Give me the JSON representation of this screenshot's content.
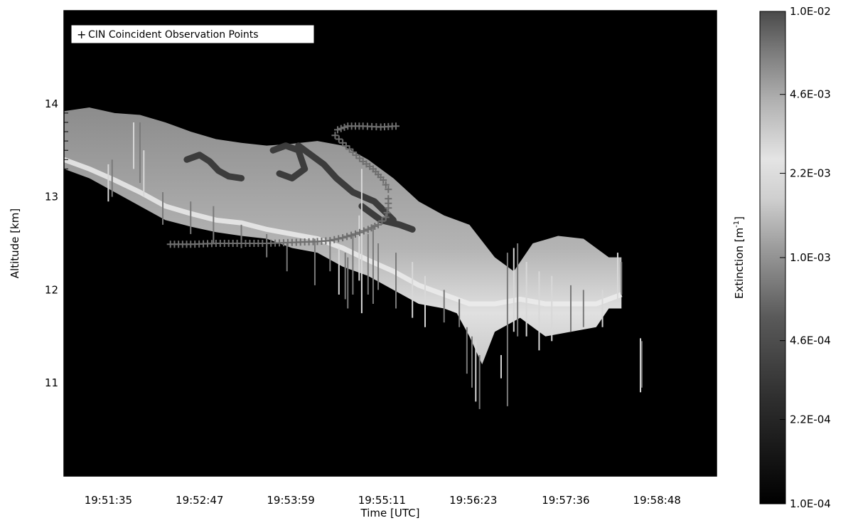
{
  "chart_data": {
    "type": "heatmap",
    "xlabel": "Time [UTC]",
    "ylabel": "Altitude [km]",
    "x_ticks": [
      "19:51:35",
      "19:52:47",
      "19:53:59",
      "19:55:11",
      "19:56:23",
      "19:57:36",
      "19:58:48"
    ],
    "x_range_seconds_from_start": [
      0,
      515
    ],
    "x_tick_positions_seconds": [
      35,
      107,
      179,
      251,
      323,
      396,
      468
    ],
    "y_ticks": [
      11,
      12,
      13,
      14
    ],
    "ylim": [
      10,
      15
    ],
    "legend": {
      "symbol": "+",
      "label": "CIN Coincident Observation Points",
      "placement": "top-left"
    },
    "colorbar": {
      "label": "Extinction",
      "unit_prefix": "[m",
      "unit_exponent": "-1",
      "unit_suffix": "]",
      "scale": "log",
      "range": [
        0.0001,
        0.01
      ],
      "tick_labels": [
        "1.0E-02",
        "4.6E-03",
        "2.2E-03",
        "1.0E-03",
        "4.6E-04",
        "2.2E-04",
        "1.0E-04"
      ],
      "colors": [
        "#000000",
        "#505050",
        "#a0a0a0",
        "#dcdcdc",
        "#e6e6e6",
        "#b4b4b4",
        "#6e6e6e",
        "#505050"
      ]
    },
    "cloud_top_km": [
      [
        0,
        13.92
      ],
      [
        20,
        13.96
      ],
      [
        40,
        13.9
      ],
      [
        60,
        13.88
      ],
      [
        80,
        13.8
      ],
      [
        100,
        13.7
      ],
      [
        120,
        13.62
      ],
      [
        140,
        13.58
      ],
      [
        160,
        13.55
      ],
      [
        180,
        13.57
      ],
      [
        200,
        13.6
      ],
      [
        220,
        13.55
      ],
      [
        240,
        13.4
      ],
      [
        260,
        13.2
      ],
      [
        280,
        12.95
      ],
      [
        300,
        12.8
      ],
      [
        320,
        12.7
      ],
      [
        340,
        12.35
      ],
      [
        355,
        12.2
      ],
      [
        370,
        12.5
      ],
      [
        390,
        12.58
      ],
      [
        410,
        12.55
      ],
      [
        430,
        12.35
      ],
      [
        440,
        12.35
      ]
    ],
    "cloud_base_km": [
      [
        0,
        13.3
      ],
      [
        20,
        13.2
      ],
      [
        40,
        13.05
      ],
      [
        60,
        12.9
      ],
      [
        80,
        12.75
      ],
      [
        100,
        12.68
      ],
      [
        120,
        12.62
      ],
      [
        140,
        12.58
      ],
      [
        160,
        12.55
      ],
      [
        180,
        12.45
      ],
      [
        200,
        12.4
      ],
      [
        220,
        12.25
      ],
      [
        240,
        12.15
      ],
      [
        260,
        12.0
      ],
      [
        280,
        11.85
      ],
      [
        300,
        11.8
      ],
      [
        310,
        11.75
      ],
      [
        320,
        11.5
      ],
      [
        330,
        11.2
      ],
      [
        340,
        11.55
      ],
      [
        360,
        11.7
      ],
      [
        380,
        11.5
      ],
      [
        400,
        11.55
      ],
      [
        420,
        11.6
      ],
      [
        430,
        11.8
      ],
      [
        440,
        11.8
      ]
    ],
    "core_km": [
      [
        0,
        13.4
      ],
      [
        20,
        13.3
      ],
      [
        40,
        13.18
      ],
      [
        60,
        13.05
      ],
      [
        80,
        12.9
      ],
      [
        100,
        12.82
      ],
      [
        120,
        12.75
      ],
      [
        140,
        12.72
      ],
      [
        160,
        12.65
      ],
      [
        180,
        12.6
      ],
      [
        200,
        12.55
      ],
      [
        220,
        12.45
      ],
      [
        240,
        12.32
      ],
      [
        260,
        12.2
      ],
      [
        280,
        12.05
      ],
      [
        300,
        11.95
      ],
      [
        320,
        11.85
      ],
      [
        340,
        11.85
      ],
      [
        360,
        11.9
      ],
      [
        380,
        11.85
      ],
      [
        400,
        11.85
      ],
      [
        420,
        11.85
      ],
      [
        440,
        11.95
      ]
    ],
    "dark_structures_km": [
      [
        [
          97,
          13.4
        ],
        [
          107,
          13.45
        ],
        [
          115,
          13.38
        ],
        [
          122,
          13.28
        ],
        [
          130,
          13.22
        ],
        [
          140,
          13.2
        ]
      ],
      [
        [
          165,
          13.5
        ],
        [
          175,
          13.55
        ],
        [
          185,
          13.5
        ],
        [
          190,
          13.3
        ],
        [
          180,
          13.2
        ],
        [
          170,
          13.25
        ]
      ],
      [
        [
          185,
          13.55
        ],
        [
          195,
          13.45
        ],
        [
          205,
          13.35
        ],
        [
          215,
          13.2
        ],
        [
          228,
          13.05
        ],
        [
          245,
          12.95
        ],
        [
          260,
          12.75
        ]
      ],
      [
        [
          235,
          12.9
        ],
        [
          250,
          12.75
        ],
        [
          265,
          12.7
        ],
        [
          275,
          12.65
        ]
      ]
    ],
    "spikes_km": [
      [
        [
          35,
          13.35,
          12.95
        ],
        [
          38,
          13.4,
          13.0
        ],
        [
          55,
          13.3,
          13.8
        ],
        [
          60,
          13.8,
          13.15
        ],
        [
          63,
          13.5,
          13.0
        ],
        [
          78,
          13.05,
          12.7
        ],
        [
          100,
          12.95,
          12.6
        ],
        [
          118,
          12.9,
          12.5
        ],
        [
          140,
          12.7,
          12.45
        ],
        [
          160,
          12.6,
          12.35
        ],
        [
          176,
          12.5,
          12.2
        ],
        [
          198,
          12.55,
          12.05
        ],
        [
          210,
          12.55,
          12.2
        ],
        [
          217,
          12.45,
          11.95
        ],
        [
          222,
          12.4,
          11.9
        ],
        [
          224,
          12.35,
          11.8
        ],
        [
          228,
          12.6,
          11.95
        ],
        [
          233,
          12.8,
          12.1
        ],
        [
          235,
          13.3,
          11.75
        ],
        [
          240,
          12.6,
          11.95
        ],
        [
          244,
          12.7,
          11.85
        ],
        [
          248,
          12.5,
          12.0
        ],
        [
          262,
          12.4,
          11.8
        ],
        [
          275,
          12.3,
          11.7
        ],
        [
          285,
          12.15,
          11.6
        ],
        [
          300,
          12.0,
          11.65
        ],
        [
          312,
          11.9,
          11.6
        ],
        [
          318,
          11.6,
          11.1
        ],
        [
          322,
          11.5,
          10.95
        ],
        [
          325,
          11.45,
          10.8
        ],
        [
          328,
          11.3,
          10.72
        ],
        [
          345,
          11.3,
          11.05
        ],
        [
          350,
          12.4,
          10.75
        ],
        [
          355,
          12.45,
          11.55
        ],
        [
          358,
          12.5,
          11.5
        ],
        [
          365,
          12.3,
          11.5
        ],
        [
          375,
          12.2,
          11.35
        ],
        [
          385,
          12.15,
          11.45
        ],
        [
          400,
          12.05,
          11.55
        ],
        [
          410,
          12.0,
          11.6
        ],
        [
          425,
          12.0,
          11.6
        ],
        [
          437,
          12.4,
          11.9
        ],
        [
          440,
          12.3,
          11.95
        ],
        [
          455,
          11.48,
          10.9
        ],
        [
          456,
          11.45,
          10.95
        ]
      ]
    ],
    "cin_track": {
      "lower": [
        [
          84,
          12.49
        ],
        [
          100,
          12.49
        ],
        [
          120,
          12.5
        ],
        [
          140,
          12.5
        ],
        [
          160,
          12.5
        ],
        [
          180,
          12.51
        ],
        [
          200,
          12.52
        ],
        [
          210,
          12.53
        ],
        [
          220,
          12.56
        ],
        [
          230,
          12.6
        ],
        [
          240,
          12.65
        ],
        [
          248,
          12.7
        ],
        [
          254,
          12.78
        ],
        [
          256,
          12.88
        ],
        [
          256,
          12.98
        ]
      ],
      "upper": [
        [
          256,
          13.08
        ],
        [
          252,
          13.18
        ],
        [
          244,
          13.3
        ],
        [
          236,
          13.38
        ],
        [
          228,
          13.48
        ],
        [
          220,
          13.58
        ],
        [
          214,
          13.66
        ],
        [
          216,
          13.72
        ],
        [
          224,
          13.76
        ],
        [
          236,
          13.76
        ],
        [
          250,
          13.75
        ],
        [
          262,
          13.76
        ]
      ]
    }
  }
}
